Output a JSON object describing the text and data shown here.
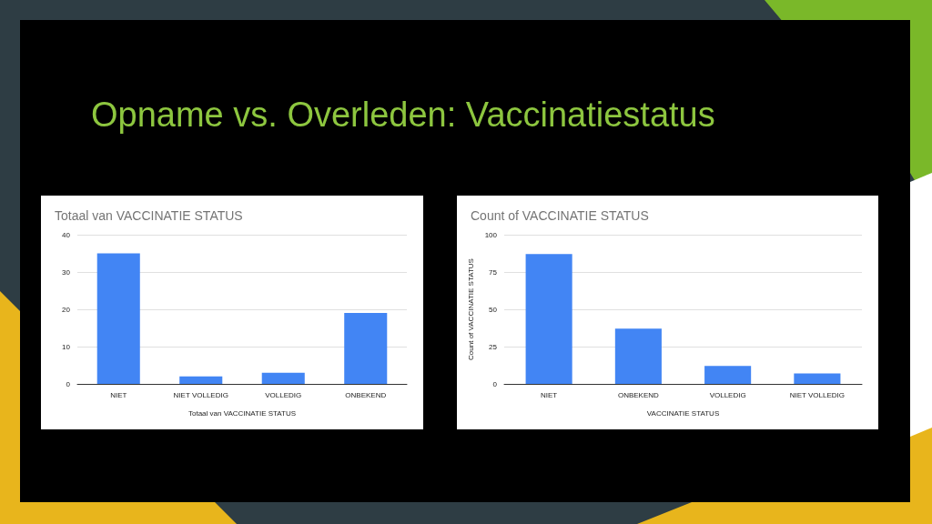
{
  "chart_data": [
    {
      "type": "other",
      "title": "Opname vs. Overleden: Vaccinatiestatus"
    },
    {
      "type": "bar",
      "title": "Totaal van VACCINATIE STATUS",
      "xlabel": "Totaal van VACCINATIE STATUS",
      "categories": [
        "NIET",
        "NIET VOLLEDIG",
        "VOLLEDIG",
        "ONBEKEND"
      ],
      "values": [
        35,
        2,
        3,
        19
      ],
      "color": "#4285f4",
      "ylim": [
        0,
        40
      ],
      "yticks": [
        0,
        10,
        20,
        30,
        40
      ],
      "grid": "y"
    },
    {
      "type": "bar",
      "title": "Count of VACCINATIE STATUS",
      "xlabel": "VACCINATIE STATUS",
      "ylabel": "Count of VACCINATIE STATUS",
      "categories": [
        "NIET",
        "ONBEKEND",
        "VOLLEDIG",
        "NIET VOLLEDIG"
      ],
      "values": [
        87,
        37,
        12,
        7
      ],
      "color": "#4285f4",
      "ylim": [
        0,
        100
      ],
      "yticks": [
        0,
        25,
        50,
        75,
        100
      ],
      "grid": "y"
    }
  ]
}
